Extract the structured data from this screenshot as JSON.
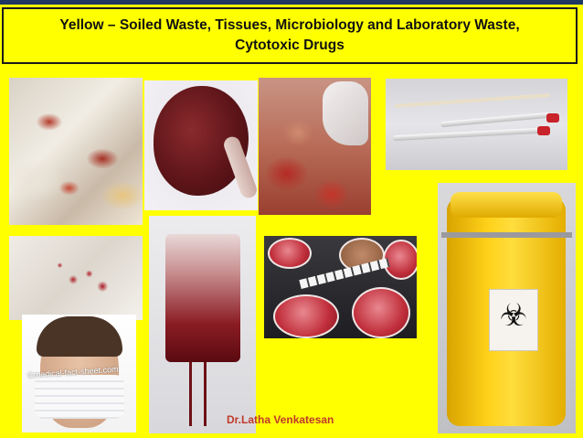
{
  "slide": {
    "title_line1": "Yellow – Soiled  Waste, Tissues, Microbiology and Laboratory Waste,",
    "title_line2": "Cytotoxic Drugs",
    "author": "Dr.Latha Venkatesan",
    "mask_watermark": "©medical-fact-sheet.com"
  },
  "colors": {
    "background": "#ffff00",
    "header_bar": "#1f3864",
    "author_text": "#c0392b",
    "container_yellow": "#ffd21a"
  },
  "photos": [
    {
      "subject": "soiled tissues"
    },
    {
      "subject": "placenta"
    },
    {
      "subject": "surgical tissue with gloved hand"
    },
    {
      "subject": "laboratory test tubes"
    },
    {
      "subject": "blood-stained sheet"
    },
    {
      "subject": "blood bag"
    },
    {
      "subject": "microbiology petri dishes"
    },
    {
      "subject": "yellow biohazard waste container",
      "icon": "biohazard-icon"
    },
    {
      "subject": "person wearing face mask"
    }
  ]
}
